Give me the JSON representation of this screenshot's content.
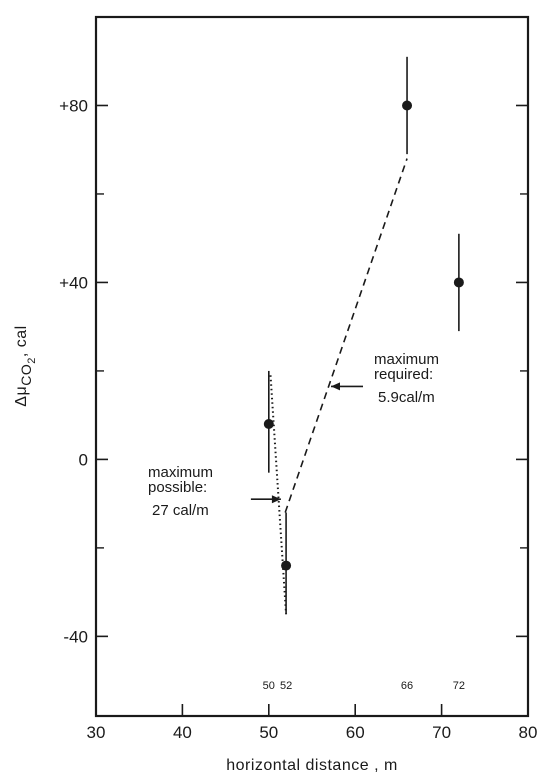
{
  "chart_data": {
    "type": "scatter",
    "xlabel": "horizontal distance , m",
    "ylabel": "Δμ",
    "ylabel_subscript": "CO",
    "ylabel_subsub": "2",
    "ylabel_unit": ", cal",
    "xlim": [
      30,
      80
    ],
    "ylim": [
      -58,
      100
    ],
    "x_ticks": [
      {
        "value": 30,
        "label": "30"
      },
      {
        "value": 40,
        "label": "40"
      },
      {
        "value": 50,
        "label": "50"
      },
      {
        "value": 60,
        "label": "60"
      },
      {
        "value": 70,
        "label": "70"
      },
      {
        "value": 80,
        "label": "80"
      }
    ],
    "y_ticks": [
      {
        "value": 80,
        "label": "+80"
      },
      {
        "value": 40,
        "label": "+40"
      },
      {
        "value": 0,
        "label": "0"
      },
      {
        "value": -40,
        "label": "-40"
      }
    ],
    "y_minor_ticks": [
      100,
      60,
      20,
      -20
    ],
    "position_markers": [
      {
        "value": 50,
        "label": "50"
      },
      {
        "value": 52,
        "label": "52"
      },
      {
        "value": 66,
        "label": "66"
      },
      {
        "value": 72,
        "label": "72"
      }
    ],
    "points": [
      {
        "x": 50,
        "y": 8,
        "err_low": -3,
        "err_high": 20
      },
      {
        "x": 52,
        "y": -24,
        "err_low": null,
        "err_high": null
      },
      {
        "x": 66,
        "y": 80,
        "err_low": 69,
        "err_high": 91
      },
      {
        "x": 72,
        "y": 40,
        "err_low": 29,
        "err_high": 51
      }
    ],
    "lines": [
      {
        "name": "maximum possible",
        "style": "dotted",
        "x1": 50.2,
        "y1": 19,
        "x2": 52,
        "y2": -35
      },
      {
        "name": "maximum required",
        "style": "dashed",
        "x1": 51.9,
        "y1": -12,
        "x2": 66,
        "y2": 68
      },
      {
        "name": "short segment",
        "style": "solid",
        "x1": 52,
        "y1": -12,
        "x2": 52,
        "y2": -35
      }
    ],
    "annotations": [
      {
        "lines": [
          "maximum",
          "required:",
          "5.9cal/m"
        ],
        "arrow_to": [
          57.2,
          16.5
        ]
      },
      {
        "lines": [
          "maximum",
          "possible:",
          "27 cal/m"
        ],
        "arrow_to": [
          51.4,
          -9
        ]
      }
    ]
  }
}
